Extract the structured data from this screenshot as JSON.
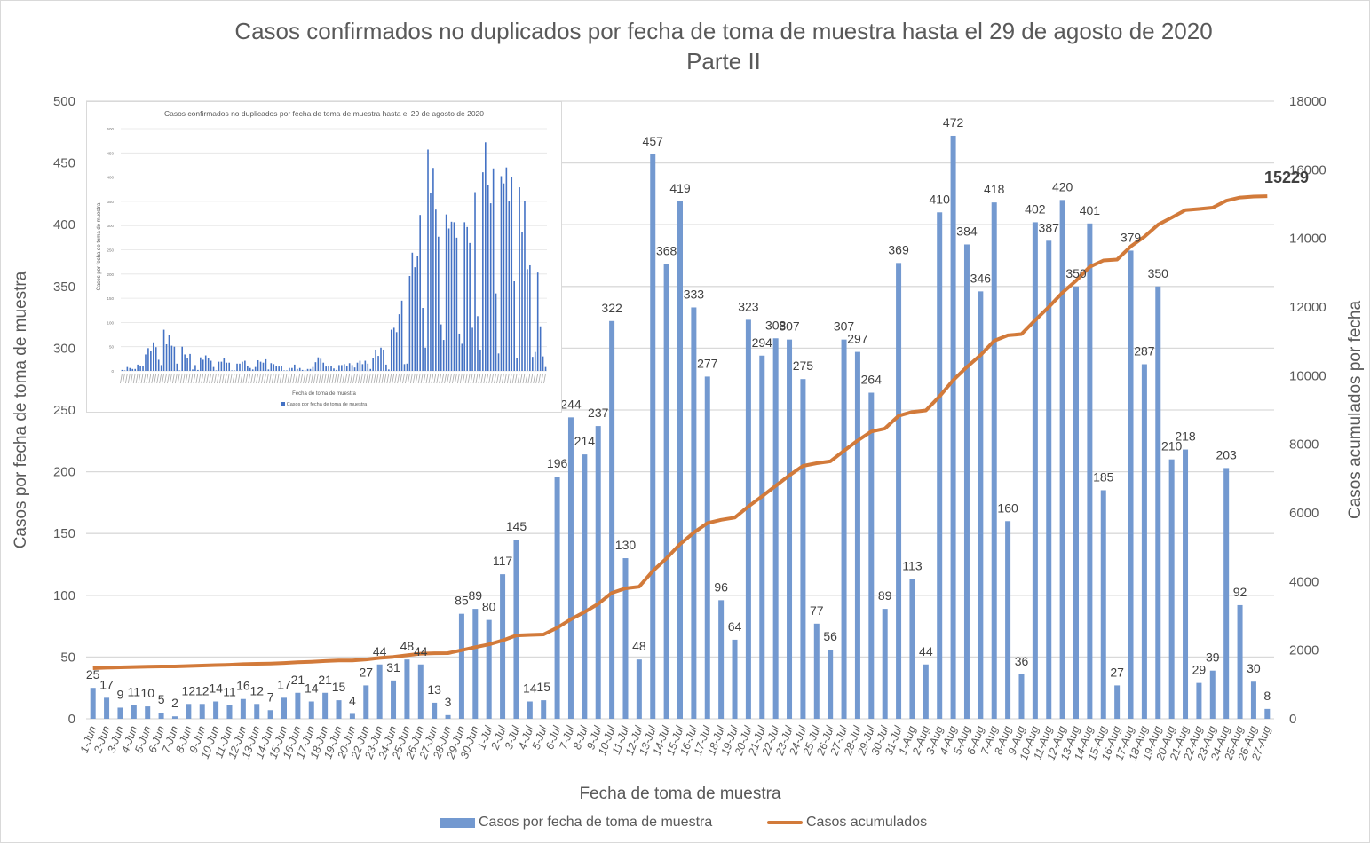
{
  "chart_data": {
    "type": "bar",
    "title": "Casos confirmados no duplicados por fecha de toma de muestra hasta el 29 de agosto de 2020",
    "subtitle": "Parte II",
    "xlabel": "Fecha de toma de muestra",
    "ylabel": "Casos por fecha de toma de muestra",
    "y2label": "Casos acumulados por fecha",
    "ylim": [
      0,
      500
    ],
    "y2lim": [
      0,
      18000
    ],
    "yticks": [
      "0",
      "50",
      "100",
      "150",
      "200",
      "250",
      "300",
      "350",
      "400",
      "450",
      "500"
    ],
    "y2ticks": [
      "0",
      "2000",
      "4000",
      "6000",
      "8000",
      "10000",
      "12000",
      "14000",
      "16000",
      "18000"
    ],
    "grid": true,
    "legend_position": "bottom",
    "categories": [
      "1-Jun",
      "2-Jun",
      "3-Jun",
      "4-Jun",
      "5-Jun",
      "6-Jun",
      "7-Jun",
      "8-Jun",
      "9-Jun",
      "10-Jun",
      "11-Jun",
      "12-Jun",
      "13-Jun",
      "14-Jun",
      "15-Jun",
      "16-Jun",
      "17-Jun",
      "18-Jun",
      "19-Jun",
      "20-Jun",
      "22-Jun",
      "23-Jun",
      "24-Jun",
      "25-Jun",
      "26-Jun",
      "27-Jun",
      "28-Jun",
      "29-Jun",
      "30-Jun",
      "1-Jul",
      "2-Jul",
      "3-Jul",
      "4-Jul",
      "5-Jul",
      "6-Jul",
      "7-Jul",
      "8-Jul",
      "9-Jul",
      "10-Jul",
      "11-Jul",
      "12-Jul",
      "13-Jul",
      "14-Jul",
      "15-Jul",
      "16-Jul",
      "17-Jul",
      "18-Jul",
      "19-Jul",
      "20-Jul",
      "21-Jul",
      "22-Jul",
      "23-Jul",
      "24-Jul",
      "25-Jul",
      "26-Jul",
      "27-Jul",
      "28-Jul",
      "29-Jul",
      "30-Jul",
      "31-Jul",
      "1-Aug",
      "2-Aug",
      "3-Aug",
      "4-Aug",
      "5-Aug",
      "6-Aug",
      "7-Aug",
      "8-Aug",
      "9-Aug",
      "10-Aug",
      "11-Aug",
      "12-Aug",
      "13-Aug",
      "14-Aug",
      "15-Aug",
      "16-Aug",
      "17-Aug",
      "18-Aug",
      "19-Aug",
      "20-Aug",
      "21-Aug",
      "22-Aug",
      "23-Aug",
      "24-Aug",
      "25-Aug",
      "26-Aug",
      "27-Aug"
    ],
    "series": [
      {
        "name": "Casos por fecha de toma de muestra",
        "type": "bar",
        "axis": "left",
        "color": "#7399d0",
        "values": [
          25,
          17,
          9,
          11,
          10,
          5,
          2,
          12,
          12,
          14,
          11,
          16,
          12,
          7,
          17,
          21,
          14,
          21,
          15,
          4,
          27,
          44,
          31,
          48,
          44,
          13,
          3,
          85,
          89,
          80,
          117,
          145,
          14,
          15,
          196,
          244,
          214,
          237,
          322,
          130,
          48,
          457,
          368,
          419,
          333,
          277,
          96,
          64,
          323,
          294,
          308,
          307,
          275,
          77,
          56,
          307,
          297,
          264,
          89,
          369,
          113,
          44,
          410,
          472,
          384,
          346,
          418,
          160,
          36,
          402,
          387,
          420,
          350,
          401,
          185,
          27,
          379,
          287,
          350,
          210,
          218,
          29,
          39,
          203,
          92,
          30,
          8
        ]
      },
      {
        "name": "Casos acumulados",
        "type": "line",
        "axis": "right",
        "color": "#d27a3a",
        "start_offset": 1448,
        "final_label": "15229"
      }
    ],
    "inset": {
      "title": "Casos confirmados no duplicados por fecha de toma de muestra hasta el 29 de agosto de 2020",
      "ylabel": "Casos por fecha de toma de muestra",
      "xlabel": "Fecha de toma de muestra",
      "legend": "Casos por fecha de toma de muestra",
      "ylim": [
        0,
        500
      ],
      "yticks": [
        "0",
        "50",
        "100",
        "150",
        "200",
        "250",
        "300",
        "350",
        "400",
        "450",
        "500"
      ],
      "color": "#4472c4",
      "early_values": [
        2,
        1,
        8,
        6,
        4,
        4,
        13,
        11,
        10,
        34,
        47,
        41,
        59,
        49,
        23,
        12,
        85,
        55,
        75,
        52,
        50,
        15,
        1,
        50,
        34,
        27,
        35,
        3,
        12,
        2,
        28,
        23,
        32,
        27,
        21,
        8,
        1,
        19,
        19,
        27,
        17,
        17,
        1,
        1,
        15,
        15,
        19,
        21,
        10,
        6,
        3,
        8,
        22,
        19,
        17,
        24,
        3,
        16,
        14,
        10,
        9,
        11,
        1,
        1,
        6,
        6,
        13,
        4,
        6,
        2,
        1,
        4,
        4,
        8,
        18,
        28,
        1,
        1,
        24,
        17,
        9,
        11,
        10,
        5,
        2,
        12,
        12,
        14,
        11,
        16,
        12,
        7,
        17,
        21,
        14,
        21,
        15,
        4,
        27,
        44,
        31,
        48,
        44,
        13,
        3
      ]
    }
  }
}
